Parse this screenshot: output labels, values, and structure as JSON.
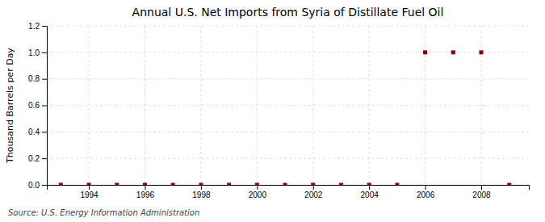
{
  "chart_data": {
    "type": "scatter",
    "title": "Annual U.S. Net Imports from Syria of Distillate Fuel Oil",
    "ylabel": "Thousand Barrels per Day",
    "annotations": [
      "Source: U.S. Energy Information Administration"
    ],
    "x": [
      1993,
      1994,
      1995,
      1996,
      1997,
      1998,
      1999,
      2000,
      2001,
      2002,
      2003,
      2004,
      2005,
      2006,
      2007,
      2008,
      2009
    ],
    "values": [
      0.0,
      0.0,
      0.0,
      0.0,
      0.0,
      0.0,
      0.0,
      0.0,
      0.0,
      0.0,
      0.0,
      0.0,
      0.0,
      1.0,
      1.0,
      1.0,
      0.0
    ],
    "color": "#8b0000",
    "marker": "square",
    "xlim": [
      1992.5,
      2009.7
    ],
    "ylim": [
      0.0,
      1.2
    ],
    "xticks": [
      1994,
      1996,
      1998,
      2000,
      2002,
      2004,
      2006,
      2008
    ],
    "yticks": [
      {
        "value": 0.0,
        "label": "0.0"
      },
      0.2,
      0.4,
      0.6,
      0.8,
      {
        "value": 1.0,
        "label": "1.0"
      },
      1.2
    ],
    "grid": true
  }
}
